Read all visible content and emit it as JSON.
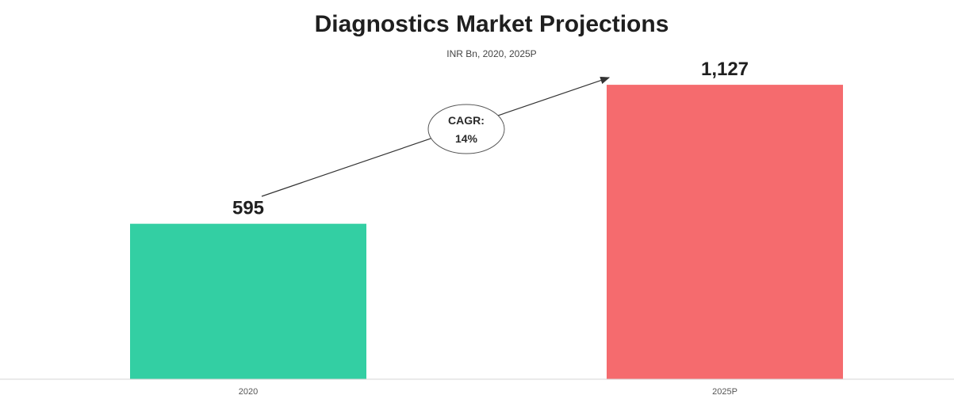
{
  "chart_data": {
    "type": "bar",
    "title": "Diagnostics Market Projections",
    "subtitle": "INR Bn, 2020, 2025P",
    "categories": [
      "2020",
      "2025P"
    ],
    "values": [
      595,
      1127
    ],
    "value_labels": [
      "595",
      "1,127"
    ],
    "colors": [
      "#33cfa3",
      "#f56b6e"
    ],
    "ylim": [
      0,
      1400
    ],
    "grid": false,
    "legend": "none",
    "annotation": {
      "line1": "CAGR:",
      "line2": "14%"
    }
  }
}
